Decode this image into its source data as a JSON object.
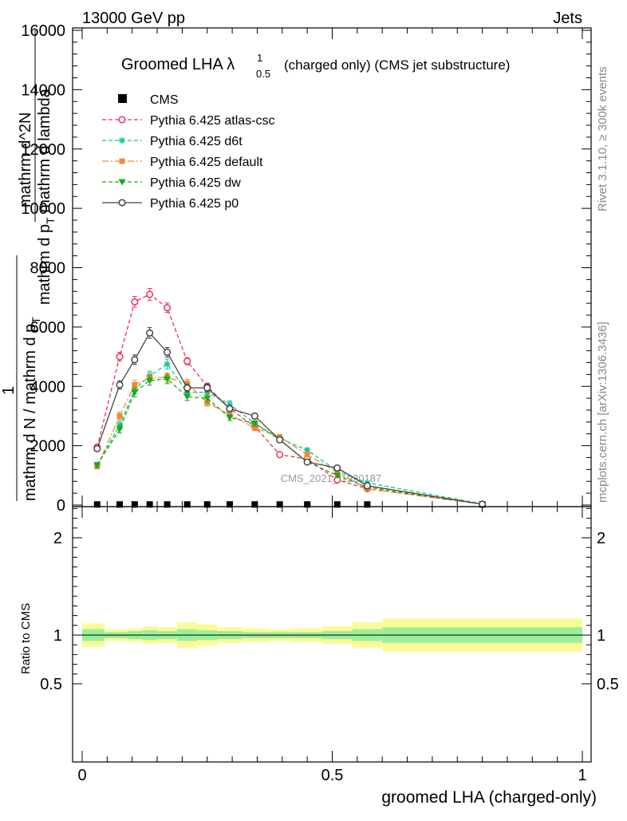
{
  "header": {
    "beam": "13000 GeV pp",
    "process": "Jets"
  },
  "side_labels": {
    "rivet": "Rivet 3.1.10, ≥ 300k events",
    "mcplots": "mcplots.cern.ch [arXiv:1306.3436]"
  },
  "watermark": "CMS_2021_I1920187",
  "title": {
    "main": "Groomed LHA λ",
    "sup": "1",
    "sub": "0.5",
    "rest": "(charged only) (CMS jet substructure)"
  },
  "ylabel_lines": [
    "mathrm d N",
    "mathrm d p_T mathrm d lambda",
    "1",
    "mathrm d N / mathrm d p_T"
  ],
  "ylabel_main": {
    "line1": "mathrm d^2N",
    "line2a": "mathrm d p",
    "line2sub": "T",
    "line2b": " mathrm d lambda",
    "frac_1": "1",
    "line3a": "mathrm d N / mathrm d p",
    "line3sub": "T"
  },
  "ratio_ylabel": "Ratio to CMS",
  "xlabel": "groomed LHA (charged-only)",
  "chart_data": [
    {
      "type": "line",
      "panel": "main",
      "xlim": [
        -0.02,
        1.0
      ],
      "ylim": [
        0,
        16000
      ],
      "x_ticks": [
        "0",
        "0.5",
        "1"
      ],
      "y_ticks": [
        {
          "v": 0,
          "label": "0"
        },
        {
          "v": 2000,
          "label": "2000"
        },
        {
          "v": 4000,
          "label": "4000"
        },
        {
          "v": 6000,
          "label": "6000"
        },
        {
          "v": 8000,
          "label": "8000"
        },
        {
          "v": 10000,
          "label": "10000"
        },
        {
          "v": 12000,
          "label": "12000"
        },
        {
          "v": 14000,
          "label": "14000"
        },
        {
          "v": 16000,
          "label": "16000"
        }
      ],
      "x": [
        0.03,
        0.075,
        0.105,
        0.135,
        0.17,
        0.21,
        0.25,
        0.295,
        0.345,
        0.395,
        0.45,
        0.51,
        0.57,
        0.8
      ],
      "series": [
        {
          "name": "CMS",
          "color": "#000000",
          "style": "data",
          "values": [
            20,
            20,
            20,
            20,
            20,
            20,
            20,
            20,
            20,
            20,
            20,
            20,
            20,
            20
          ]
        },
        {
          "name": "Pythia 6.425 atlas-csc",
          "color": "#e8345a",
          "marker": "open-circle",
          "dash": "5,3",
          "values": [
            1950,
            5000,
            6850,
            7100,
            6650,
            4850,
            4000,
            3250,
            2650,
            1700,
            1550,
            850,
            550,
            30
          ],
          "errors": [
            80,
            150,
            180,
            200,
            160,
            120,
            110,
            90,
            80,
            60,
            60,
            50,
            40,
            10
          ]
        },
        {
          "name": "Pythia 6.425 d6t",
          "color": "#18c49a",
          "marker": "star",
          "dash": "5,3",
          "values": [
            1350,
            2700,
            3900,
            4350,
            4750,
            3800,
            3800,
            3400,
            2750,
            2250,
            1850,
            1150,
            750,
            40
          ],
          "errors": [
            70,
            120,
            150,
            160,
            170,
            130,
            130,
            110,
            90,
            80,
            70,
            50,
            40,
            10
          ]
        },
        {
          "name": "Pythia 6.425 default",
          "color": "#f58a30",
          "marker": "square",
          "dash": "8,3,2,3",
          "values": [
            1300,
            3000,
            4050,
            4300,
            4300,
            4100,
            3450,
            3050,
            2600,
            2300,
            1700,
            1100,
            550,
            30
          ],
          "errors": [
            70,
            130,
            150,
            160,
            160,
            140,
            120,
            100,
            90,
            80,
            70,
            50,
            40,
            10
          ]
        },
        {
          "name": "Pythia 6.425 dw",
          "color": "#1aaa1a",
          "marker": "triangle-down",
          "dash": "5,3",
          "values": [
            1350,
            2550,
            3800,
            4200,
            4250,
            3650,
            3600,
            2950,
            2750,
            2200,
            1450,
            1000,
            600,
            30
          ],
          "errors": [
            70,
            120,
            150,
            160,
            160,
            130,
            130,
            100,
            90,
            80,
            70,
            50,
            40,
            10
          ]
        },
        {
          "name": "Pythia 6.425 p0",
          "color": "#444444",
          "marker": "open-circle",
          "dash": "",
          "values": [
            1900,
            4050,
            4900,
            5800,
            5150,
            3950,
            3950,
            3250,
            3000,
            2200,
            1450,
            1250,
            650,
            30
          ],
          "errors": [
            80,
            140,
            160,
            180,
            160,
            130,
            130,
            100,
            90,
            80,
            70,
            50,
            40,
            10
          ]
        }
      ]
    },
    {
      "type": "area",
      "panel": "ratio",
      "ylim": [
        0.4,
        2.4
      ],
      "y_ticks": [
        {
          "v": 0.5,
          "label": "0.5"
        },
        {
          "v": 1,
          "label": "1"
        },
        {
          "v": 2,
          "label": "2"
        }
      ],
      "bin_edges": [
        0.0,
        0.045,
        0.09,
        0.12,
        0.15,
        0.19,
        0.23,
        0.27,
        0.32,
        0.37,
        0.42,
        0.48,
        0.54,
        0.6,
        1.0
      ],
      "band_inner": [
        0.06,
        0.03,
        0.04,
        0.05,
        0.04,
        0.06,
        0.05,
        0.04,
        0.03,
        0.03,
        0.03,
        0.04,
        0.06,
        0.08
      ],
      "band_outer": [
        0.12,
        0.06,
        0.07,
        0.09,
        0.08,
        0.13,
        0.11,
        0.08,
        0.07,
        0.06,
        0.07,
        0.09,
        0.13,
        0.17
      ],
      "colors": {
        "inner": "#99f099",
        "outer": "#fafa99"
      }
    }
  ]
}
